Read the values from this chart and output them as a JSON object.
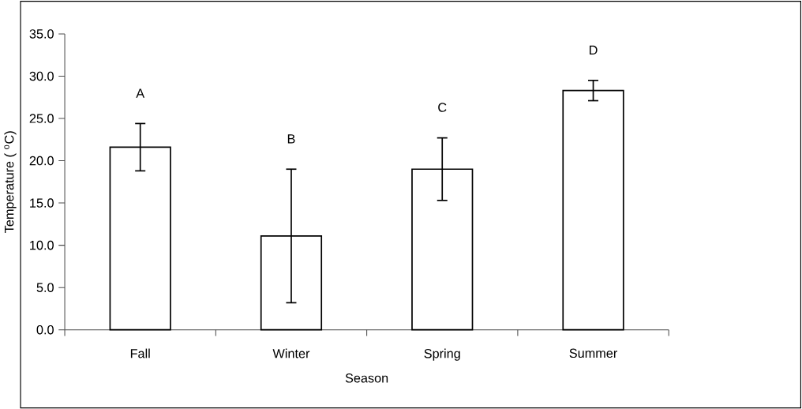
{
  "chart_data": {
    "type": "bar",
    "xlabel": "Season",
    "ylabel": "Temperature ( $^{o}$C)",
    "categories": [
      "Fall",
      "Winter",
      "Spring",
      "Summer"
    ],
    "values": [
      21.6,
      11.1,
      19.0,
      28.3
    ],
    "errors": [
      2.8,
      7.9,
      3.7,
      1.2
    ],
    "color": "#ffffff",
    "ylim": [
      0,
      35
    ],
    "yticks": [
      {
        "value": 0,
        "label": "0.0"
      },
      {
        "value": 5,
        "label": "5.0"
      },
      {
        "value": 10,
        "label": "10.0"
      },
      {
        "value": 15,
        "label": "15.0"
      },
      {
        "value": 20,
        "label": "20.0"
      },
      {
        "value": 25,
        "label": "25.0"
      },
      {
        "value": 30,
        "label": "30.0"
      },
      {
        "value": 35,
        "label": "35.0"
      }
    ],
    "annotations": [
      "A",
      "B",
      "C",
      "D"
    ],
    "grid": false
  }
}
